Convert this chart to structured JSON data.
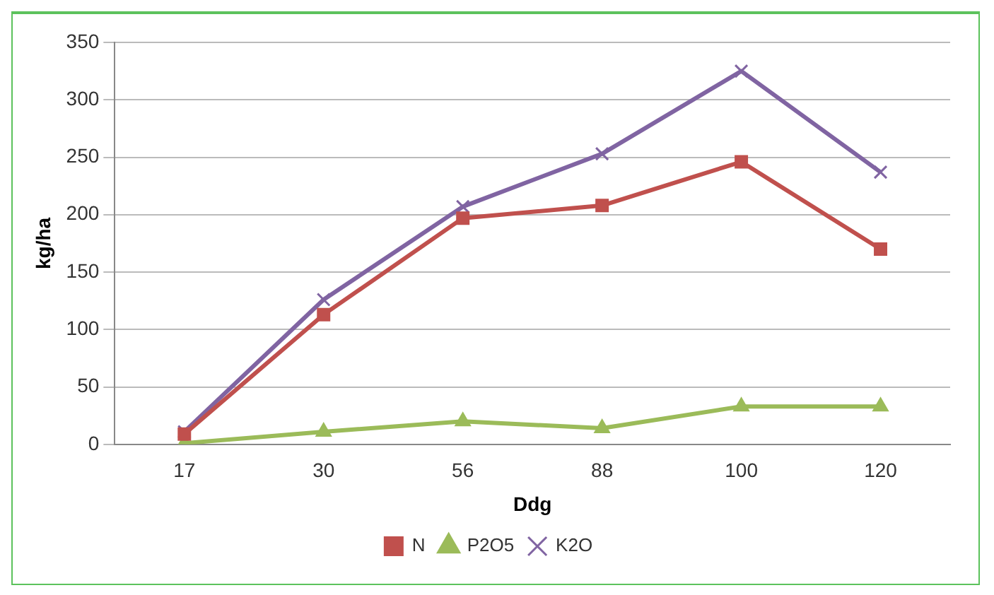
{
  "chart_data": {
    "type": "line",
    "xlabel": "Ddg",
    "ylabel": "kg/ha",
    "categories": [
      "17",
      "30",
      "56",
      "88",
      "100",
      "120"
    ],
    "series": [
      {
        "name": "N",
        "color": "#c0504d",
        "marker": "square",
        "values": [
          9,
          113,
          197,
          208,
          246,
          170
        ]
      },
      {
        "name": "P2O5",
        "color": "#9bbb59",
        "marker": "triangle",
        "values": [
          1,
          11,
          20,
          14,
          33,
          33
        ]
      },
      {
        "name": "K2O",
        "color": "#8064a2",
        "marker": "cross",
        "values": [
          11,
          126,
          207,
          253,
          325,
          237
        ]
      }
    ],
    "ylim": [
      0,
      350
    ],
    "yticks": [
      0,
      50,
      100,
      150,
      200,
      250,
      300,
      350
    ],
    "grid": "y",
    "legend": "bottom"
  }
}
